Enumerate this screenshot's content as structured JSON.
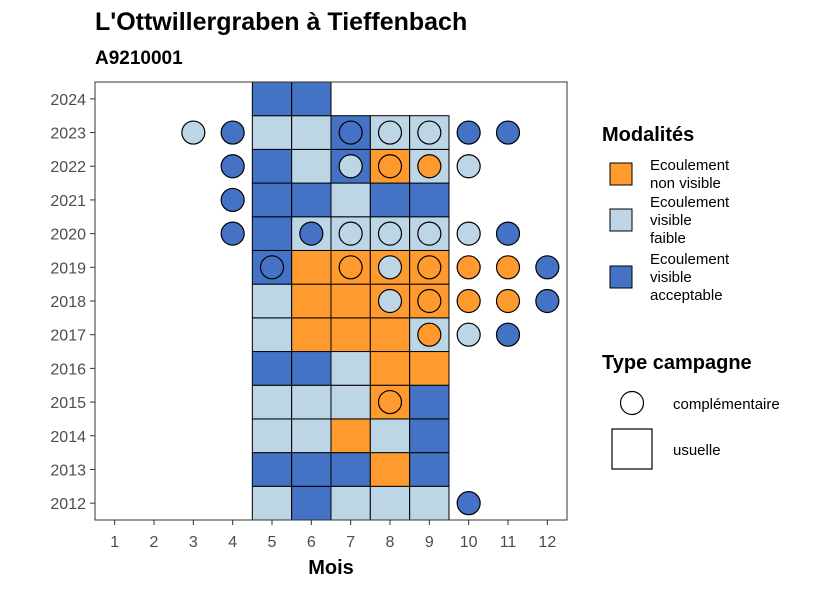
{
  "chart_data": {
    "type": "heatmap",
    "title": "L'Ottwillergraben à Tieffenbach",
    "subtitle": "A9210001",
    "xlabel": "Mois",
    "ylabel": "",
    "x_ticks": [
      "1",
      "2",
      "3",
      "4",
      "5",
      "6",
      "7",
      "8",
      "9",
      "10",
      "11",
      "12"
    ],
    "y_ticks": [
      "2012",
      "2013",
      "2014",
      "2015",
      "2016",
      "2017",
      "2018",
      "2019",
      "2020",
      "2021",
      "2022",
      "2023",
      "2024"
    ],
    "xlim": [
      0.5,
      12.5
    ],
    "ylim": [
      2011.5,
      2024.5
    ],
    "grid": false,
    "legend_position": "right",
    "colors": {
      "non_visible": "#FE9A2E",
      "faible": "#BCD6E6",
      "acceptable": "#4472C4"
    },
    "legend_modalites": {
      "title": "Modalités",
      "items": [
        {
          "key": "non_visible",
          "lines": [
            "Ecoulement",
            "non visible"
          ]
        },
        {
          "key": "faible",
          "lines": [
            "Ecoulement",
            "visible",
            "faible"
          ]
        },
        {
          "key": "acceptable",
          "lines": [
            "Ecoulement",
            "visible",
            "acceptable"
          ]
        }
      ]
    },
    "legend_type": {
      "title": "Type campagne",
      "items": [
        {
          "shape": "circle",
          "label": "complémentaire"
        },
        {
          "shape": "square",
          "label": "usuelle"
        }
      ]
    },
    "usuelle": [
      {
        "year": 2012,
        "month": 5,
        "m": "faible"
      },
      {
        "year": 2012,
        "month": 6,
        "m": "acceptable"
      },
      {
        "year": 2012,
        "month": 7,
        "m": "faible"
      },
      {
        "year": 2012,
        "month": 8,
        "m": "faible"
      },
      {
        "year": 2012,
        "month": 9,
        "m": "faible"
      },
      {
        "year": 2013,
        "month": 5,
        "m": "acceptable"
      },
      {
        "year": 2013,
        "month": 6,
        "m": "acceptable"
      },
      {
        "year": 2013,
        "month": 7,
        "m": "acceptable"
      },
      {
        "year": 2013,
        "month": 8,
        "m": "non_visible"
      },
      {
        "year": 2013,
        "month": 9,
        "m": "acceptable"
      },
      {
        "year": 2014,
        "month": 5,
        "m": "faible"
      },
      {
        "year": 2014,
        "month": 6,
        "m": "faible"
      },
      {
        "year": 2014,
        "month": 7,
        "m": "non_visible"
      },
      {
        "year": 2014,
        "month": 8,
        "m": "faible"
      },
      {
        "year": 2014,
        "month": 9,
        "m": "acceptable"
      },
      {
        "year": 2015,
        "month": 5,
        "m": "faible"
      },
      {
        "year": 2015,
        "month": 6,
        "m": "faible"
      },
      {
        "year": 2015,
        "month": 7,
        "m": "faible"
      },
      {
        "year": 2015,
        "month": 8,
        "m": "non_visible"
      },
      {
        "year": 2015,
        "month": 9,
        "m": "acceptable"
      },
      {
        "year": 2016,
        "month": 5,
        "m": "acceptable"
      },
      {
        "year": 2016,
        "month": 6,
        "m": "acceptable"
      },
      {
        "year": 2016,
        "month": 7,
        "m": "faible"
      },
      {
        "year": 2016,
        "month": 8,
        "m": "non_visible"
      },
      {
        "year": 2016,
        "month": 9,
        "m": "non_visible"
      },
      {
        "year": 2017,
        "month": 5,
        "m": "faible"
      },
      {
        "year": 2017,
        "month": 6,
        "m": "non_visible"
      },
      {
        "year": 2017,
        "month": 7,
        "m": "non_visible"
      },
      {
        "year": 2017,
        "month": 8,
        "m": "non_visible"
      },
      {
        "year": 2017,
        "month": 9,
        "m": "faible"
      },
      {
        "year": 2018,
        "month": 5,
        "m": "faible"
      },
      {
        "year": 2018,
        "month": 6,
        "m": "non_visible"
      },
      {
        "year": 2018,
        "month": 7,
        "m": "non_visible"
      },
      {
        "year": 2018,
        "month": 8,
        "m": "non_visible"
      },
      {
        "year": 2018,
        "month": 9,
        "m": "non_visible"
      },
      {
        "year": 2019,
        "month": 5,
        "m": "acceptable"
      },
      {
        "year": 2019,
        "month": 6,
        "m": "non_visible"
      },
      {
        "year": 2019,
        "month": 7,
        "m": "non_visible"
      },
      {
        "year": 2019,
        "month": 8,
        "m": "non_visible"
      },
      {
        "year": 2019,
        "month": 9,
        "m": "non_visible"
      },
      {
        "year": 2020,
        "month": 5,
        "m": "acceptable"
      },
      {
        "year": 2020,
        "month": 6,
        "m": "faible"
      },
      {
        "year": 2020,
        "month": 7,
        "m": "faible"
      },
      {
        "year": 2020,
        "month": 8,
        "m": "faible"
      },
      {
        "year": 2020,
        "month": 9,
        "m": "faible"
      },
      {
        "year": 2021,
        "month": 5,
        "m": "acceptable"
      },
      {
        "year": 2021,
        "month": 6,
        "m": "acceptable"
      },
      {
        "year": 2021,
        "month": 7,
        "m": "faible"
      },
      {
        "year": 2021,
        "month": 8,
        "m": "acceptable"
      },
      {
        "year": 2021,
        "month": 9,
        "m": "acceptable"
      },
      {
        "year": 2022,
        "month": 5,
        "m": "acceptable"
      },
      {
        "year": 2022,
        "month": 6,
        "m": "faible"
      },
      {
        "year": 2022,
        "month": 7,
        "m": "acceptable"
      },
      {
        "year": 2022,
        "month": 8,
        "m": "non_visible"
      },
      {
        "year": 2022,
        "month": 9,
        "m": "faible"
      },
      {
        "year": 2023,
        "month": 5,
        "m": "faible"
      },
      {
        "year": 2023,
        "month": 6,
        "m": "faible"
      },
      {
        "year": 2023,
        "month": 7,
        "m": "acceptable"
      },
      {
        "year": 2023,
        "month": 8,
        "m": "faible"
      },
      {
        "year": 2023,
        "month": 9,
        "m": "faible"
      },
      {
        "year": 2024,
        "month": 5,
        "m": "acceptable"
      },
      {
        "year": 2024,
        "month": 6,
        "m": "acceptable"
      }
    ],
    "complementaire": [
      {
        "year": 2023,
        "month": 3,
        "m": "faible"
      },
      {
        "year": 2023,
        "month": 4,
        "m": "acceptable"
      },
      {
        "year": 2023,
        "month": 7,
        "m": "acceptable"
      },
      {
        "year": 2023,
        "month": 8,
        "m": "faible"
      },
      {
        "year": 2023,
        "month": 9,
        "m": "faible"
      },
      {
        "year": 2023,
        "month": 10,
        "m": "acceptable"
      },
      {
        "year": 2023,
        "month": 11,
        "m": "acceptable"
      },
      {
        "year": 2022,
        "month": 4,
        "m": "acceptable"
      },
      {
        "year": 2022,
        "month": 7,
        "m": "faible"
      },
      {
        "year": 2022,
        "month": 8,
        "m": "non_visible"
      },
      {
        "year": 2022,
        "month": 9,
        "m": "non_visible"
      },
      {
        "year": 2022,
        "month": 10,
        "m": "faible"
      },
      {
        "year": 2021,
        "month": 4,
        "m": "acceptable"
      },
      {
        "year": 2020,
        "month": 4,
        "m": "acceptable"
      },
      {
        "year": 2020,
        "month": 6,
        "m": "acceptable"
      },
      {
        "year": 2020,
        "month": 7,
        "m": "faible"
      },
      {
        "year": 2020,
        "month": 8,
        "m": "faible"
      },
      {
        "year": 2020,
        "month": 9,
        "m": "faible"
      },
      {
        "year": 2020,
        "month": 10,
        "m": "faible"
      },
      {
        "year": 2020,
        "month": 11,
        "m": "acceptable"
      },
      {
        "year": 2019,
        "month": 5,
        "m": "acceptable"
      },
      {
        "year": 2019,
        "month": 7,
        "m": "non_visible"
      },
      {
        "year": 2019,
        "month": 8,
        "m": "faible"
      },
      {
        "year": 2019,
        "month": 9,
        "m": "non_visible"
      },
      {
        "year": 2019,
        "month": 10,
        "m": "non_visible"
      },
      {
        "year": 2019,
        "month": 11,
        "m": "non_visible"
      },
      {
        "year": 2019,
        "month": 12,
        "m": "acceptable"
      },
      {
        "year": 2018,
        "month": 8,
        "m": "faible"
      },
      {
        "year": 2018,
        "month": 9,
        "m": "non_visible"
      },
      {
        "year": 2018,
        "month": 10,
        "m": "non_visible"
      },
      {
        "year": 2018,
        "month": 11,
        "m": "non_visible"
      },
      {
        "year": 2018,
        "month": 12,
        "m": "acceptable"
      },
      {
        "year": 2017,
        "month": 9,
        "m": "non_visible"
      },
      {
        "year": 2017,
        "month": 10,
        "m": "faible"
      },
      {
        "year": 2017,
        "month": 11,
        "m": "acceptable"
      },
      {
        "year": 2015,
        "month": 8,
        "m": "non_visible"
      },
      {
        "year": 2012,
        "month": 10,
        "m": "acceptable"
      }
    ]
  }
}
